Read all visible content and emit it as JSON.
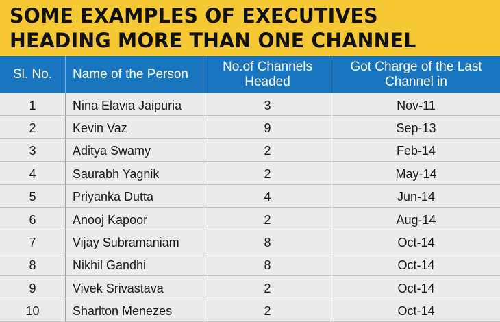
{
  "banner": {
    "line1": "SOME EXAMPLES OF EXECUTIVES",
    "line2": "HEADING MORE THAN ONE CHANNEL"
  },
  "table": {
    "headers": [
      "Sl. No.",
      "Name of the Person",
      "No.of Channels Headed",
      "Got Charge of the Last Channel in"
    ],
    "rows": [
      [
        "1",
        "Nina Elavia Jaipuria",
        "3",
        "Nov-11"
      ],
      [
        "2",
        "Kevin Vaz",
        "9",
        "Sep-13"
      ],
      [
        "3",
        "Aditya Swamy",
        "2",
        "Feb-14"
      ],
      [
        "4",
        "Saurabh Yagnik",
        "2",
        "May-14"
      ],
      [
        "5",
        "Priyanka Dutta",
        "4",
        "Jun-14"
      ],
      [
        "6",
        "Anooj Kapoor",
        "2",
        "Aug-14"
      ],
      [
        "7",
        "Vijay Subramaniam",
        "8",
        "Oct-14"
      ],
      [
        "8",
        "Nikhil Gandhi",
        "8",
        "Oct-14"
      ],
      [
        "9",
        "Vivek Srivastava",
        "2",
        "Oct-14"
      ],
      [
        "10",
        "Sharlton Menezes",
        "2",
        "Oct-14"
      ]
    ]
  },
  "colors": {
    "banner_bg": "#f6c934",
    "header_bg": "#1a75c1",
    "row_bg": "#ebebeb"
  }
}
